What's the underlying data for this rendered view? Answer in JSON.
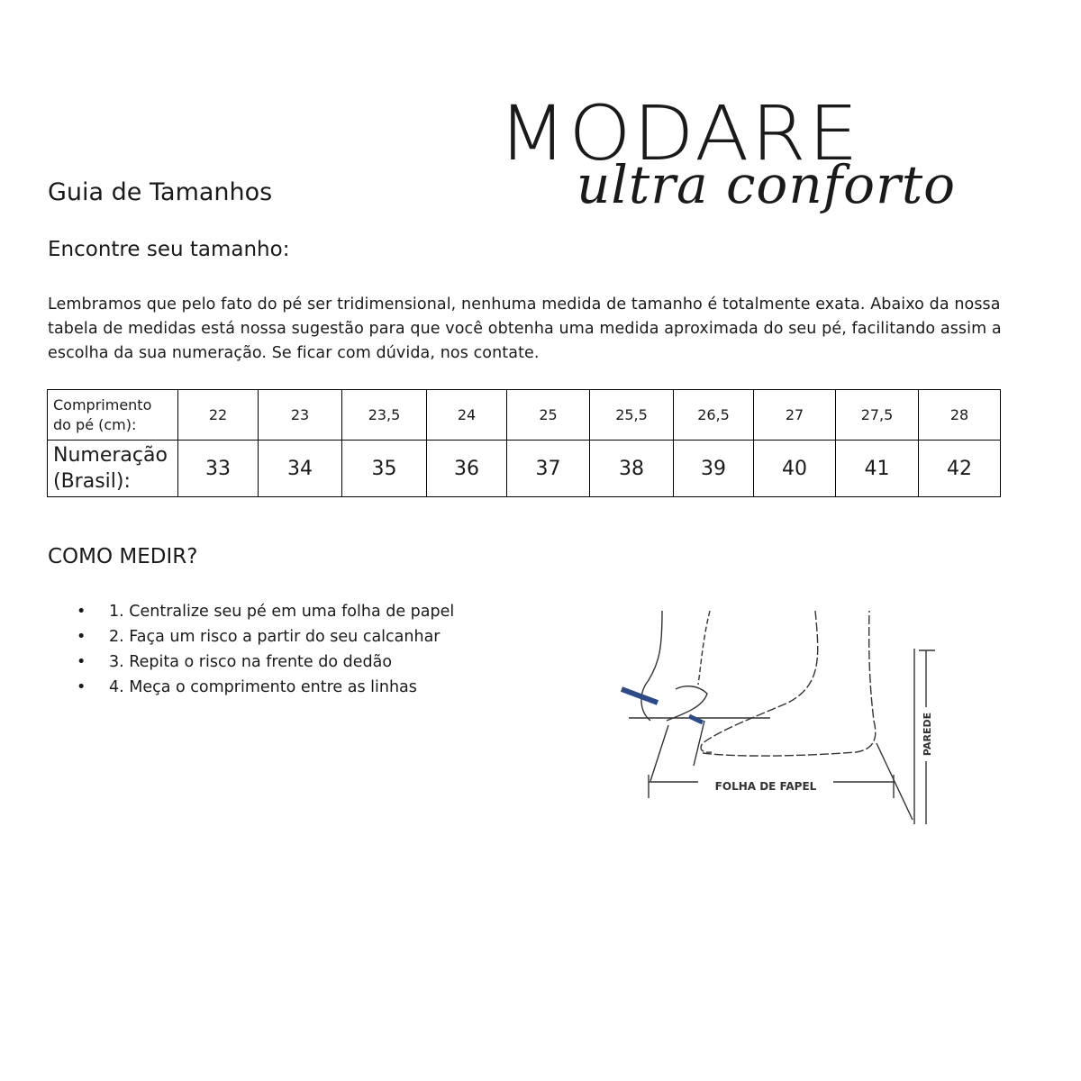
{
  "logo": {
    "brand": "MODARE",
    "tagline": "ultra conforto"
  },
  "title": "Guia de Tamanhos",
  "subtitle": "Encontre seu tamanho:",
  "intro": "Lembramos que pelo fato do pé ser tridimensional, nenhuma medida de tamanho é totalmente exata. Abaixo da nossa tabela de medidas está nossa sugestão para que você obtenha uma medida aproximada do seu pé, facilitando assim a escolha da sua numeração. Se ficar com dúvida, nos contate.",
  "size_table": {
    "row1_header": [
      "Comprimento",
      "do pé (cm):"
    ],
    "row2_header": [
      "Numeração",
      "(Brasil):"
    ],
    "foot_length_cm": [
      "22",
      "23",
      "23,5",
      "24",
      "25",
      "25,5",
      "26,5",
      "27",
      "27,5",
      "28"
    ],
    "br_size": [
      "33",
      "34",
      "35",
      "36",
      "37",
      "38",
      "39",
      "40",
      "41",
      "42"
    ]
  },
  "how_to": {
    "heading": "COMO MEDIR?",
    "steps": [
      "1. Centralize seu pé em uma folha de papel",
      "2. Faça um risco a partir do seu calcanhar",
      "3. Repita o risco na frente do dedão",
      "4. Meça o comprimento entre as linhas"
    ]
  },
  "illustration": {
    "paper_label": "FOLHA DE FAPEL",
    "wall_label": "PAREDE",
    "pencil_color": "#2a4a8a"
  }
}
